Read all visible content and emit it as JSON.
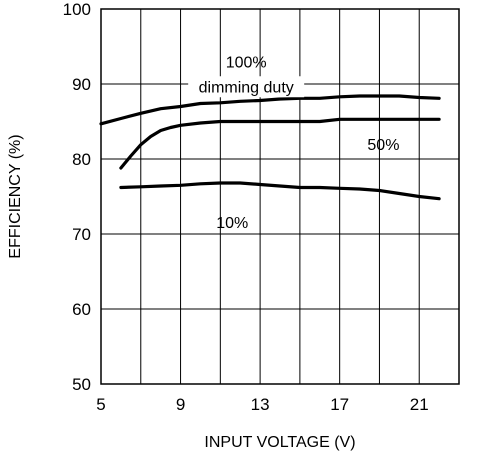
{
  "chart_data": {
    "type": "line",
    "title": "",
    "xlabel": "INPUT VOLTAGE (V)",
    "ylabel": "EFFICIENCY (%)",
    "xlim": [
      5,
      23
    ],
    "ylim": [
      50,
      100
    ],
    "xticks": [
      5,
      9,
      13,
      17,
      21
    ],
    "xtick_labels": [
      "5",
      "9",
      "13",
      "17",
      "21"
    ],
    "yticks": [
      50,
      60,
      70,
      80,
      90,
      100
    ],
    "ytick_labels": [
      "50",
      "60",
      "70",
      "80",
      "90",
      "100"
    ],
    "grid": true,
    "legend": "none",
    "series": [
      {
        "name": "100% dimming duty",
        "x": [
          5,
          6,
          7,
          8,
          9,
          10,
          11,
          12,
          13,
          14,
          15,
          16,
          17,
          18,
          19,
          20,
          21,
          22
        ],
        "y": [
          84.7,
          85.4,
          86.1,
          86.7,
          87.0,
          87.4,
          87.5,
          87.7,
          87.8,
          88.0,
          88.1,
          88.1,
          88.3,
          88.4,
          88.4,
          88.4,
          88.2,
          88.1
        ]
      },
      {
        "name": "50%",
        "x": [
          6,
          6.5,
          7,
          7.5,
          8,
          8.5,
          9,
          10,
          11,
          12,
          13,
          14,
          15,
          16,
          17,
          18,
          19,
          20,
          21,
          22
        ],
        "y": [
          78.8,
          80.4,
          81.9,
          83.0,
          83.8,
          84.2,
          84.5,
          84.8,
          85.0,
          85.0,
          85.0,
          85.0,
          85.0,
          85.0,
          85.3,
          85.3,
          85.3,
          85.3,
          85.3,
          85.3
        ]
      },
      {
        "name": "10%",
        "x": [
          6,
          7,
          8,
          9,
          10,
          11,
          12,
          13,
          14,
          15,
          16,
          17,
          18,
          19,
          20,
          21,
          22
        ],
        "y": [
          76.2,
          76.3,
          76.4,
          76.5,
          76.7,
          76.8,
          76.8,
          76.6,
          76.4,
          76.2,
          76.2,
          76.1,
          76.0,
          75.8,
          75.4,
          75.0,
          74.7
        ]
      }
    ],
    "annotations": [
      {
        "text": "100%",
        "x": 12.3,
        "y": 92.2
      },
      {
        "text": "dimming duty",
        "x": 12.3,
        "y": 88.9
      },
      {
        "text": "50%",
        "x": 19.2,
        "y": 81.2
      },
      {
        "text": "10%",
        "x": 11.6,
        "y": 70.8
      }
    ]
  }
}
